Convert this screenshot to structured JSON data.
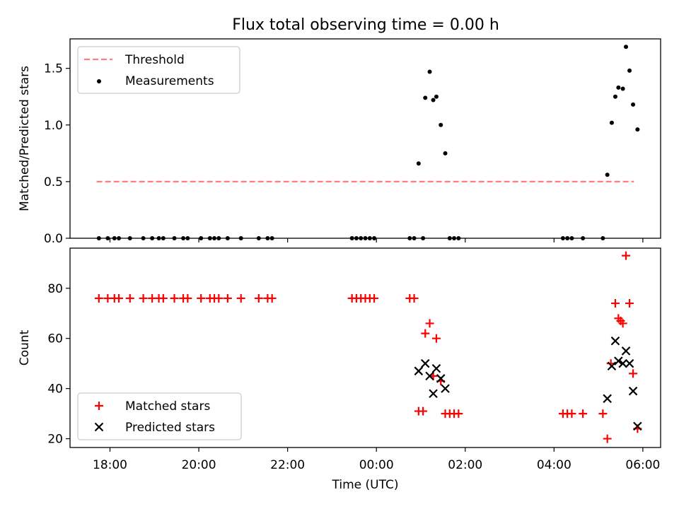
{
  "figure": {
    "title": "Flux total observing time = 0.00 h"
  },
  "chart_data": [
    {
      "type": "scatter",
      "panel": "top",
      "ylabel": "Matched/Predicted stars",
      "ylim": [
        0,
        1.76
      ],
      "yticks": [
        0.0,
        0.5,
        1.0,
        1.5
      ],
      "ytick_labels": [
        "0.0",
        "0.5",
        "1.0",
        "1.5"
      ],
      "xlim": [
        -6.9,
        6.4
      ],
      "xlabel": "",
      "grid": false,
      "legend": "top-left",
      "threshold": {
        "name": "Threshold",
        "value": 0.5,
        "x_start": -6.3,
        "x_end": 5.8,
        "color": "#ff7f7f"
      },
      "series": [
        {
          "name": "Measurements",
          "marker": "dot",
          "color": "#000000",
          "points": [
            [
              -6.25,
              0
            ],
            [
              -6.05,
              0
            ],
            [
              -5.9,
              0
            ],
            [
              -5.8,
              0
            ],
            [
              -5.55,
              0
            ],
            [
              -5.25,
              0
            ],
            [
              -5.05,
              0
            ],
            [
              -4.9,
              0
            ],
            [
              -4.8,
              0
            ],
            [
              -4.55,
              0
            ],
            [
              -4.35,
              0
            ],
            [
              -4.25,
              0
            ],
            [
              -3.95,
              0
            ],
            [
              -3.75,
              0
            ],
            [
              -3.65,
              0
            ],
            [
              -3.55,
              0
            ],
            [
              -3.35,
              0
            ],
            [
              -3.05,
              0
            ],
            [
              -2.65,
              0
            ],
            [
              -2.45,
              0
            ],
            [
              -2.35,
              0
            ],
            [
              -0.55,
              0
            ],
            [
              -0.45,
              0
            ],
            [
              -0.35,
              0
            ],
            [
              -0.25,
              0
            ],
            [
              -0.15,
              0
            ],
            [
              -0.05,
              0
            ],
            [
              0.75,
              0
            ],
            [
              0.85,
              0
            ],
            [
              1.05,
              0
            ],
            [
              1.65,
              0
            ],
            [
              1.75,
              0
            ],
            [
              1.85,
              0
            ],
            [
              4.2,
              0
            ],
            [
              4.3,
              0
            ],
            [
              4.4,
              0
            ],
            [
              4.65,
              0
            ],
            [
              5.1,
              0
            ],
            [
              0.95,
              0.66
            ],
            [
              1.1,
              1.24
            ],
            [
              1.2,
              1.47
            ],
            [
              1.28,
              1.22
            ],
            [
              1.35,
              1.25
            ],
            [
              1.45,
              1.0
            ],
            [
              1.55,
              0.75
            ],
            [
              5.2,
              0.56
            ],
            [
              5.3,
              1.02
            ],
            [
              5.38,
              1.25
            ],
            [
              5.45,
              1.33
            ],
            [
              5.55,
              1.32
            ],
            [
              5.62,
              1.69
            ],
            [
              5.7,
              1.48
            ],
            [
              5.78,
              1.18
            ],
            [
              5.88,
              0.96
            ]
          ]
        }
      ]
    },
    {
      "type": "scatter",
      "panel": "bottom",
      "ylabel": "Count",
      "ylim": [
        16.5,
        96
      ],
      "yticks": [
        20,
        40,
        60,
        80
      ],
      "ytick_labels": [
        "20",
        "40",
        "60",
        "80"
      ],
      "xlim": [
        -6.9,
        6.4
      ],
      "xlabel": "Time (UTC)",
      "xticks": [
        -6,
        -4,
        -2,
        0,
        2,
        4,
        6
      ],
      "xtick_labels": [
        "18:00",
        "20:00",
        "22:00",
        "00:00",
        "02:00",
        "04:00",
        "06:00"
      ],
      "grid": false,
      "legend": "bottom-left",
      "series": [
        {
          "name": "Matched stars",
          "marker": "plus",
          "color": "#ff0000",
          "points": [
            [
              -6.25,
              76
            ],
            [
              -6.05,
              76
            ],
            [
              -5.9,
              76
            ],
            [
              -5.8,
              76
            ],
            [
              -5.55,
              76
            ],
            [
              -5.25,
              76
            ],
            [
              -5.05,
              76
            ],
            [
              -4.9,
              76
            ],
            [
              -4.8,
              76
            ],
            [
              -4.55,
              76
            ],
            [
              -4.35,
              76
            ],
            [
              -4.25,
              76
            ],
            [
              -3.95,
              76
            ],
            [
              -3.75,
              76
            ],
            [
              -3.65,
              76
            ],
            [
              -3.55,
              76
            ],
            [
              -3.35,
              76
            ],
            [
              -3.05,
              76
            ],
            [
              -2.65,
              76
            ],
            [
              -2.45,
              76
            ],
            [
              -2.35,
              76
            ],
            [
              -0.55,
              76
            ],
            [
              -0.45,
              76
            ],
            [
              -0.35,
              76
            ],
            [
              -0.25,
              76
            ],
            [
              -0.15,
              76
            ],
            [
              -0.05,
              76
            ],
            [
              0.75,
              76
            ],
            [
              0.85,
              76
            ],
            [
              0.95,
              31
            ],
            [
              1.05,
              31
            ],
            [
              1.1,
              62
            ],
            [
              1.2,
              66
            ],
            [
              1.28,
              45
            ],
            [
              1.35,
              60
            ],
            [
              1.45,
              43
            ],
            [
              1.55,
              30
            ],
            [
              1.65,
              30
            ],
            [
              1.75,
              30
            ],
            [
              1.85,
              30
            ],
            [
              4.2,
              30
            ],
            [
              4.3,
              30
            ],
            [
              4.4,
              30
            ],
            [
              4.65,
              30
            ],
            [
              5.1,
              30
            ],
            [
              5.2,
              20
            ],
            [
              5.28,
              50
            ],
            [
              5.38,
              74
            ],
            [
              5.45,
              68
            ],
            [
              5.5,
              67
            ],
            [
              5.55,
              66
            ],
            [
              5.62,
              93
            ],
            [
              5.7,
              74
            ],
            [
              5.78,
              46
            ],
            [
              5.88,
              24
            ]
          ]
        },
        {
          "name": "Predicted stars",
          "marker": "cross",
          "color": "#000000",
          "points": [
            [
              0.95,
              47
            ],
            [
              1.1,
              50
            ],
            [
              1.2,
              45
            ],
            [
              1.28,
              38
            ],
            [
              1.35,
              48
            ],
            [
              1.45,
              44
            ],
            [
              1.55,
              40
            ],
            [
              5.2,
              36
            ],
            [
              5.3,
              49
            ],
            [
              5.38,
              59
            ],
            [
              5.45,
              51
            ],
            [
              5.55,
              50
            ],
            [
              5.62,
              55
            ],
            [
              5.7,
              50
            ],
            [
              5.78,
              39
            ],
            [
              5.88,
              25
            ]
          ]
        }
      ]
    }
  ]
}
